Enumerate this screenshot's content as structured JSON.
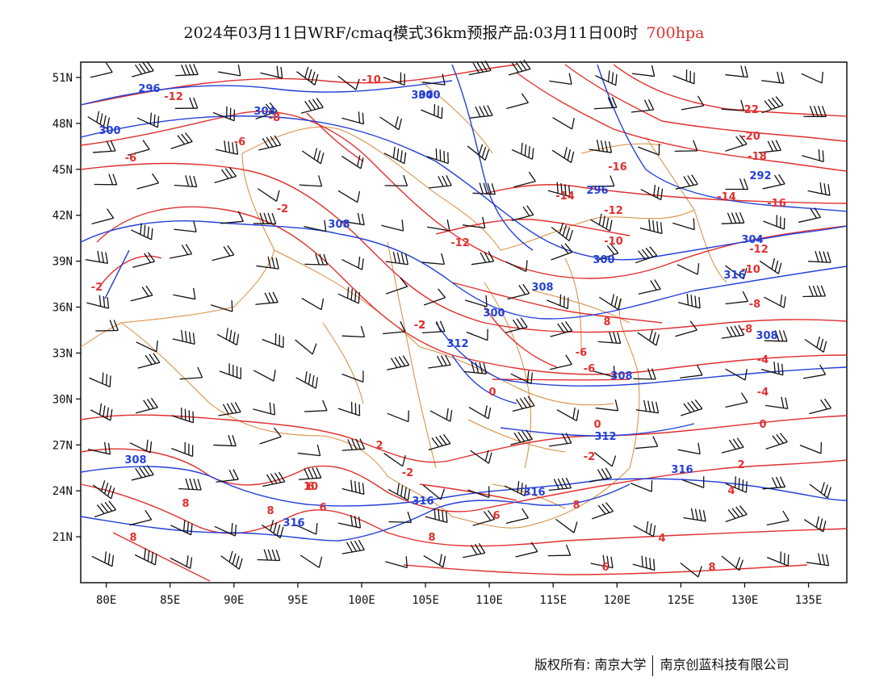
{
  "header": {
    "title": "2024年03月11日WRF/cmaq模式36km预报产品:03月11日00时",
    "level": "700hpa",
    "level_color": "#e0302e"
  },
  "map": {
    "lon_ticks": [
      "80E",
      "85E",
      "90E",
      "95E",
      "100E",
      "105E",
      "110E",
      "115E",
      "120E",
      "125E",
      "130E",
      "135E"
    ],
    "lat_ticks": [
      "51N",
      "48N",
      "45N",
      "42N",
      "39N",
      "36N",
      "33N",
      "30N",
      "27N",
      "24N",
      "21N"
    ],
    "lon_range": [
      78,
      138
    ],
    "lat_range": [
      18,
      52
    ],
    "temperature_labels": [
      "-12",
      "-10",
      "-8",
      "-6",
      "-6",
      "-2",
      "-2",
      "-2",
      "-10",
      "-12",
      "-14",
      "-16",
      "-22",
      "-20",
      "-18",
      "-14",
      "-16",
      "-12",
      "-12",
      "-10",
      "-8",
      "-8",
      "-6",
      "-4",
      "-6",
      "-4",
      "-2",
      "0",
      "0",
      "-2",
      "-2",
      "0",
      "2",
      "4",
      "2",
      "6",
      "6",
      "8",
      "8",
      "10",
      "6",
      "8",
      "8",
      "4",
      "6",
      "8",
      "8",
      "8"
    ],
    "height_labels": [
      "296",
      "304",
      "300",
      "304",
      "296",
      "292",
      "308",
      "300",
      "304",
      "308",
      "300",
      "308",
      "308",
      "312",
      "312",
      "308",
      "316",
      "316",
      "316",
      "316",
      "316",
      "300"
    ],
    "temperature_color": "#e0302e",
    "height_color": "#2440d8",
    "border_color": "#d98a3a"
  },
  "footer": {
    "copyright_left": "版权所有: 南京大学",
    "copyright_right": "南京创蓝科技有限公司"
  }
}
